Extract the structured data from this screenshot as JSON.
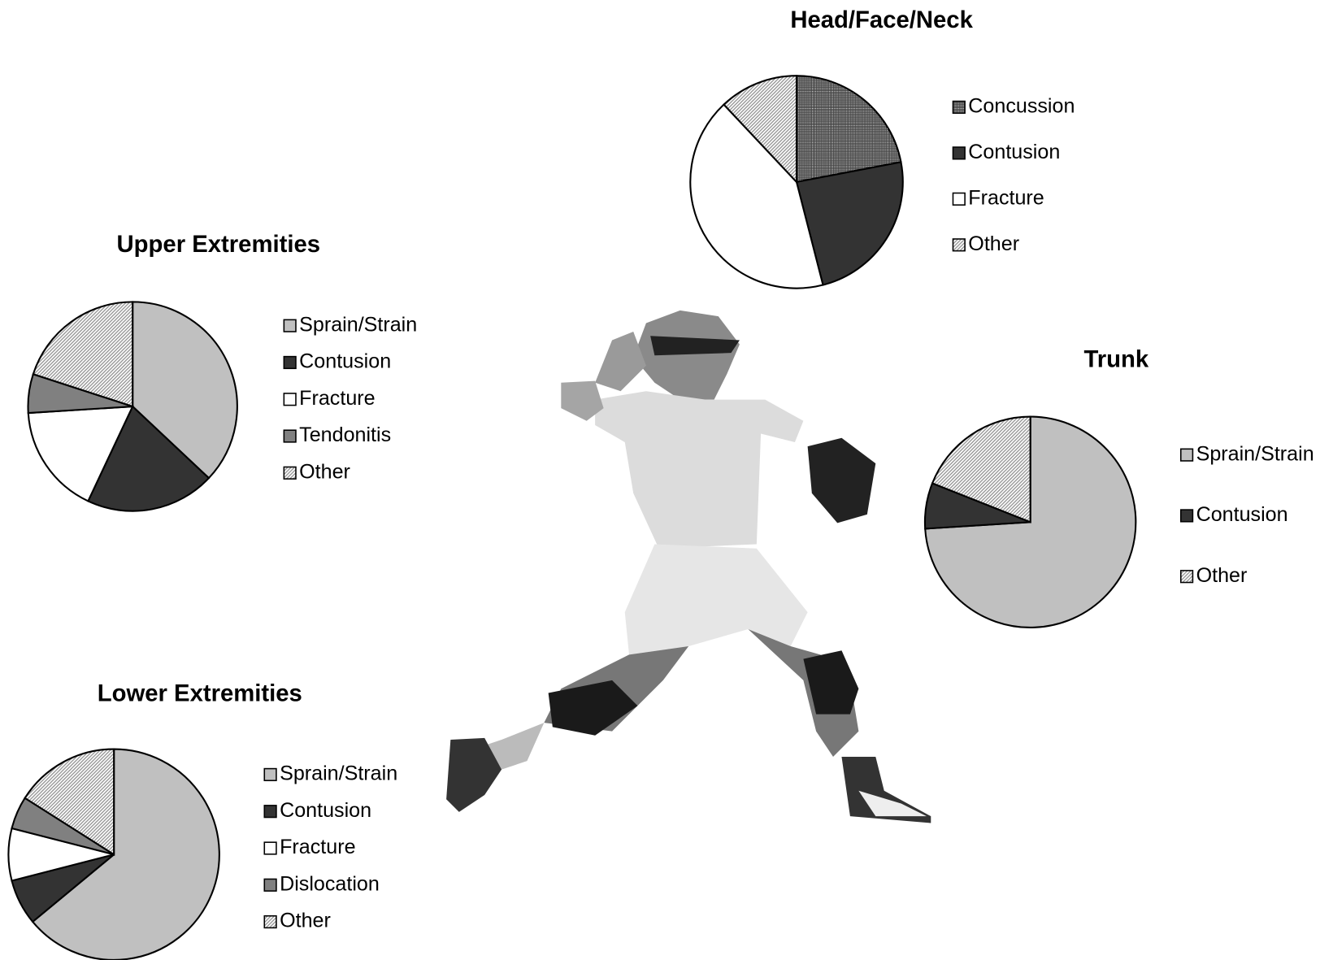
{
  "chart_data": [
    {
      "type": "pie",
      "title": "Head/Face/Neck",
      "categories": [
        "Concussion",
        "Contusion",
        "Fracture",
        "Other"
      ],
      "values": [
        22,
        24,
        42,
        12
      ],
      "colors": [
        "#444444",
        "#333333",
        "#ffffff",
        "#909090"
      ],
      "patterns": [
        "grid",
        "solid",
        "solid",
        "hatch"
      ]
    },
    {
      "type": "pie",
      "title": "Upper Extremities",
      "categories": [
        "Sprain/Strain",
        "Contusion",
        "Fracture",
        "Tendonitis",
        "Other"
      ],
      "values": [
        37,
        20,
        17,
        6,
        20
      ],
      "colors": [
        "#c0c0c0",
        "#333333",
        "#ffffff",
        "#808080",
        "#909090"
      ],
      "patterns": [
        "solid",
        "solid",
        "solid",
        "solid",
        "hatch"
      ]
    },
    {
      "type": "pie",
      "title": "Trunk",
      "categories": [
        "Sprain/Strain",
        "Contusion",
        "Other"
      ],
      "values": [
        74,
        7,
        19
      ],
      "colors": [
        "#c0c0c0",
        "#333333",
        "#909090"
      ],
      "patterns": [
        "solid",
        "solid",
        "hatch"
      ]
    },
    {
      "type": "pie",
      "title": "Lower Extremities",
      "categories": [
        "Sprain/Strain",
        "Contusion",
        "Fracture",
        "Dislocation",
        "Other"
      ],
      "values": [
        64,
        7,
        8,
        5,
        16
      ],
      "colors": [
        "#c0c0c0",
        "#333333",
        "#ffffff",
        "#808080",
        "#909090"
      ],
      "patterns": [
        "solid",
        "solid",
        "solid",
        "solid",
        "hatch"
      ]
    }
  ]
}
